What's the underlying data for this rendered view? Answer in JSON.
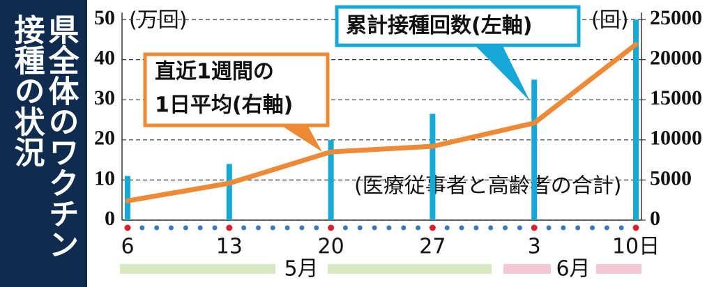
{
  "chart_data": {
    "type": "bar_line",
    "title": [
      "県全体のワクチン",
      "接種の状況"
    ],
    "ylabel": "(万回)",
    "y2label": "(回)",
    "note": "(医療従事者と高齢者の合計)",
    "categories": [
      "6",
      "13",
      "20",
      "27",
      "3",
      "10日"
    ],
    "months": [
      "5月",
      "6月"
    ],
    "series": [
      {
        "name": [
          "累計接種回数(左軸)"
        ],
        "type": "bar",
        "color": "#18a8d8",
        "values": [
          11,
          14,
          20,
          26.5,
          35,
          50
        ]
      },
      {
        "name": [
          "直近1週間の",
          "1日平均(右軸)"
        ],
        "type": "line",
        "axis": "y2",
        "color": "#ee8a35",
        "values": [
          2400,
          4600,
          8500,
          9200,
          12100,
          21900
        ]
      }
    ],
    "ylim": [
      0,
      50
    ],
    "yticks": [
      0,
      10,
      20,
      30,
      40,
      50
    ],
    "y2lim": [
      0,
      25000
    ],
    "y2ticks": [
      0,
      5000,
      10000,
      15000,
      20000,
      25000
    ],
    "grid": true
  }
}
